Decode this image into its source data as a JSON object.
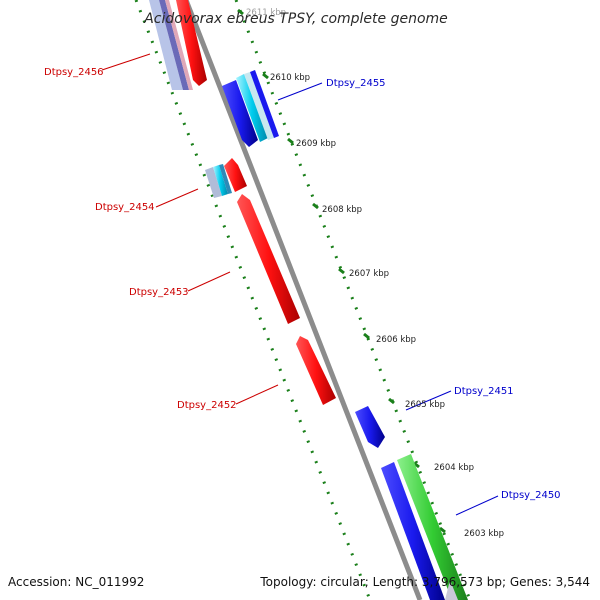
{
  "title": "Acidovorax ebreus TPSY, complete genome",
  "footer": {
    "accession": "Accession: NC_011992",
    "topology": "Topology: circular; Length: 3,796,573 bp; Genes: 3,544"
  },
  "ruler": [
    "2611 kbp",
    "2610 kbp",
    "2609 kbp",
    "2608 kbp",
    "2607 kbp",
    "2606 kbp",
    "2605 kbp",
    "2604 kbp",
    "2603 kbp"
  ],
  "genes": [
    {
      "id": "Dtpsy_2456",
      "strand": "reverse"
    },
    {
      "id": "Dtpsy_2455",
      "strand": "forward"
    },
    {
      "id": "Dtpsy_2454",
      "strand": "reverse"
    },
    {
      "id": "Dtpsy_2453",
      "strand": "reverse"
    },
    {
      "id": "Dtpsy_2452",
      "strand": "reverse"
    },
    {
      "id": "Dtpsy_2451",
      "strand": "forward"
    },
    {
      "id": "Dtpsy_2450",
      "strand": "forward"
    }
  ],
  "colors": {
    "reverse_label": "#cc0000",
    "forward_label": "#0000cc",
    "reverse_gene": "#ff1111",
    "forward_gene": "#1a1aee",
    "green_feature": "#33cc33",
    "cyan_feature": "#00ccee",
    "backbone": "#8c8c8c",
    "dots": "#1a7f1a"
  }
}
